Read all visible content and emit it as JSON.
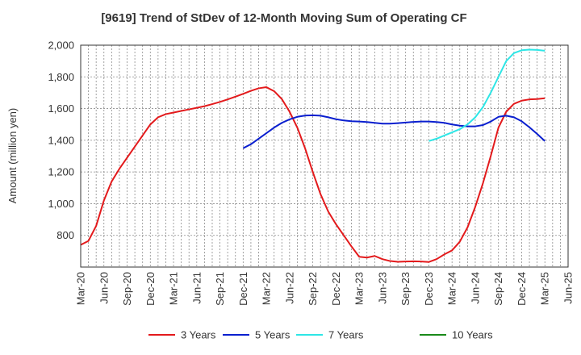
{
  "chart_data": {
    "type": "line",
    "title": "[9619]  Trend of StDev of 12-Month Moving Sum of Operating CF",
    "ylabel": "Amount (million yen)",
    "xlabel": "",
    "ylim": [
      600,
      2000
    ],
    "yticks": [
      800,
      1000,
      1200,
      1400,
      1600,
      1800,
      2000
    ],
    "ytick_labels": [
      "800",
      "1,000",
      "1,200",
      "1,400",
      "1,600",
      "1,800",
      "2,000"
    ],
    "xticks": [
      "2020-03",
      "2020-06",
      "2020-09",
      "2020-12",
      "2021-03",
      "2021-06",
      "2021-09",
      "2021-12",
      "2022-03",
      "2022-06",
      "2022-09",
      "2022-12",
      "2023-03",
      "2023-06",
      "2023-09",
      "2023-12",
      "2024-03",
      "2024-06",
      "2024-09",
      "2024-12",
      "2025-03",
      "2025-06"
    ],
    "xtick_labels": [
      "Mar-20",
      "Jun-20",
      "Sep-20",
      "Dec-20",
      "Mar-21",
      "Jun-21",
      "Sep-21",
      "Dec-21",
      "Mar-22",
      "Jun-22",
      "Sep-22",
      "Dec-22",
      "Mar-23",
      "Jun-23",
      "Sep-23",
      "Dec-23",
      "Mar-24",
      "Jun-24",
      "Sep-24",
      "Dec-24",
      "Mar-25",
      "Jun-25"
    ],
    "grid": true,
    "legend_position": "bottom",
    "series": [
      {
        "name": "3 Years",
        "color": "#e31a1c",
        "x": [
          "2020-03",
          "2020-04",
          "2020-05",
          "2020-06",
          "2020-07",
          "2020-08",
          "2020-09",
          "2020-10",
          "2020-11",
          "2020-12",
          "2021-01",
          "2021-02",
          "2021-03",
          "2021-04",
          "2021-05",
          "2021-06",
          "2021-07",
          "2021-08",
          "2021-09",
          "2021-10",
          "2021-11",
          "2021-12",
          "2022-01",
          "2022-02",
          "2022-03",
          "2022-04",
          "2022-05",
          "2022-06",
          "2022-07",
          "2022-08",
          "2022-09",
          "2022-10",
          "2022-11",
          "2022-12",
          "2023-01",
          "2023-02",
          "2023-03",
          "2023-04",
          "2023-05",
          "2023-06",
          "2023-07",
          "2023-08",
          "2023-09",
          "2023-10",
          "2023-11",
          "2023-12",
          "2024-01",
          "2024-02",
          "2024-03",
          "2024-04",
          "2024-05",
          "2024-06",
          "2024-07",
          "2024-08",
          "2024-09",
          "2024-10",
          "2024-11",
          "2024-12",
          "2025-01",
          "2025-02",
          "2025-03"
        ],
        "values": [
          740,
          765,
          860,
          1020,
          1140,
          1220,
          1290,
          1360,
          1430,
          1500,
          1545,
          1565,
          1575,
          1585,
          1595,
          1605,
          1615,
          1628,
          1642,
          1658,
          1675,
          1693,
          1712,
          1728,
          1735,
          1710,
          1660,
          1580,
          1480,
          1350,
          1200,
          1060,
          950,
          870,
          800,
          730,
          665,
          660,
          670,
          650,
          638,
          633,
          635,
          636,
          635,
          632,
          650,
          680,
          705,
          760,
          850,
          980,
          1130,
          1300,
          1480,
          1580,
          1630,
          1650,
          1658,
          1660,
          1665
        ]
      },
      {
        "name": "5 Years",
        "color": "#0a1fcf",
        "x": [
          "2021-12",
          "2022-01",
          "2022-02",
          "2022-03",
          "2022-04",
          "2022-05",
          "2022-06",
          "2022-07",
          "2022-08",
          "2022-09",
          "2022-10",
          "2022-11",
          "2022-12",
          "2023-01",
          "2023-02",
          "2023-03",
          "2023-04",
          "2023-05",
          "2023-06",
          "2023-07",
          "2023-08",
          "2023-09",
          "2023-10",
          "2023-11",
          "2023-12",
          "2024-01",
          "2024-02",
          "2024-03",
          "2024-04",
          "2024-05",
          "2024-06",
          "2024-07",
          "2024-08",
          "2024-09",
          "2024-10",
          "2024-11",
          "2024-12",
          "2025-01",
          "2025-02",
          "2025-03"
        ],
        "values": [
          1350,
          1375,
          1410,
          1445,
          1480,
          1510,
          1532,
          1548,
          1556,
          1558,
          1555,
          1545,
          1533,
          1525,
          1520,
          1518,
          1515,
          1510,
          1505,
          1505,
          1508,
          1512,
          1516,
          1518,
          1518,
          1515,
          1510,
          1500,
          1492,
          1488,
          1488,
          1496,
          1518,
          1548,
          1555,
          1545,
          1520,
          1482,
          1440,
          1395
        ]
      },
      {
        "name": "7 Years",
        "color": "#2ee6e6",
        "x": [
          "2023-12",
          "2024-01",
          "2024-02",
          "2024-03",
          "2024-04",
          "2024-05",
          "2024-06",
          "2024-07",
          "2024-08",
          "2024-09",
          "2024-10",
          "2024-11",
          "2024-12",
          "2025-01",
          "2025-02",
          "2025-03"
        ],
        "values": [
          1395,
          1410,
          1430,
          1450,
          1470,
          1500,
          1545,
          1610,
          1700,
          1800,
          1900,
          1950,
          1968,
          1972,
          1970,
          1965
        ]
      },
      {
        "name": "10 Years",
        "color": "#1a8a1a",
        "x": [],
        "values": []
      }
    ]
  }
}
